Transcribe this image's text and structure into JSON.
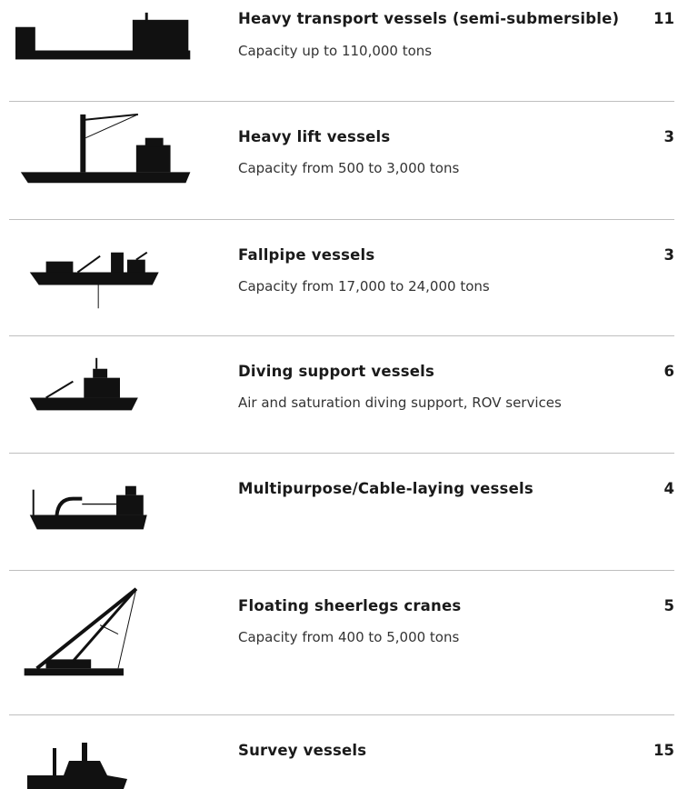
{
  "rows": [
    {
      "title": "Heavy transport vessels (semi-submersible)",
      "count": "11",
      "description": "Capacity up to 110,000 tons"
    },
    {
      "title": "Heavy lift vessels",
      "count": "3",
      "description": "Capacity from 500 to 3,000 tons"
    },
    {
      "title": "Fallpipe vessels",
      "count": "3",
      "description": "Capacity from 17,000 to 24,000 tons"
    },
    {
      "title": "Diving support vessels",
      "count": "6",
      "description": "Air and saturation diving support, ROV services"
    },
    {
      "title": "Multipurpose/Cable-laying vessels",
      "count": "4"
    },
    {
      "title": "Floating sheerlegs cranes",
      "count": "5",
      "description": "Capacity from 400 to 5,000 tons"
    },
    {
      "title": "Survey vessels",
      "count": "15"
    }
  ]
}
